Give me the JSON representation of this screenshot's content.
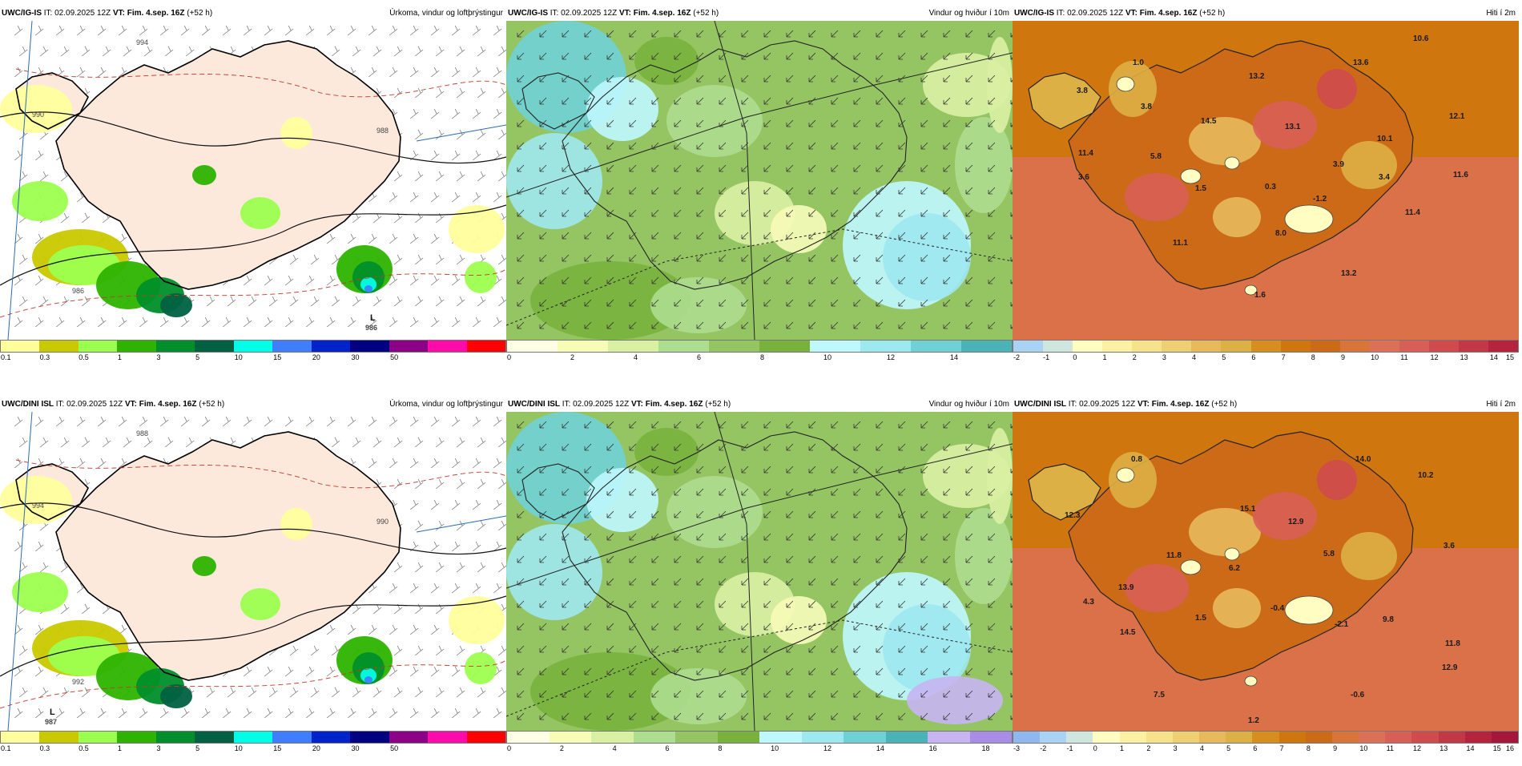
{
  "panels": [
    {
      "row": 0,
      "col": 0,
      "model": "UWC/IG-IS",
      "init": "IT: 02.09.2025 12Z",
      "vt_label": "VT: Fim. 4.sep. 16Z",
      "lead": "(+52 h)",
      "title": "Úrkoma, vindur og loftþrýstingur",
      "kind": "precip",
      "map_labels": [],
      "isobar_labels": [
        "990",
        "986",
        "988",
        "994"
      ],
      "lows": [
        {
          "letter": "L",
          "value": "986"
        }
      ],
      "colorbar": {
        "colors": [
          "#ffff9c",
          "#c9c900",
          "#9cff4f",
          "#2db300",
          "#008f2a",
          "#006142",
          "#00ffe6",
          "#3f7fff",
          "#0023cc",
          "#000080",
          "#8c0088",
          "#ff0bab",
          "#ff0000"
        ],
        "ticks": [
          "0.1",
          "0.3",
          "0.5",
          "1",
          "3",
          "5",
          "10",
          "15",
          "20",
          "30",
          "50"
        ]
      }
    },
    {
      "row": 0,
      "col": 1,
      "model": "UWC/IG-IS",
      "init": "IT: 02.09.2025 12Z",
      "vt_label": "VT: Fim. 4.sep. 16Z",
      "lead": "(+52 h)",
      "title": "Vindur og hviður í 10m",
      "kind": "wind",
      "map_labels": [],
      "colorbar": {
        "colors": [
          "#ffffe5",
          "#f7fcb9",
          "#d9f0a3",
          "#addd8e",
          "#95c563",
          "#78b13c",
          "#bff7ff",
          "#9ee8ef",
          "#6fd0d6",
          "#4bb3b8"
        ],
        "ticks": [
          "0",
          "2",
          "4",
          "6",
          "8",
          "10",
          "12",
          "14"
        ]
      }
    },
    {
      "row": 0,
      "col": 2,
      "model": "UWC/IG-IS",
      "init": "IT: 02.09.2025 12Z",
      "vt_label": "VT: Fim. 4.sep. 16Z",
      "lead": "(+52 h)",
      "title": "Hiti í 2m",
      "kind": "temp",
      "map_labels": [
        "1.0",
        "3.8",
        "3.8",
        "13.2",
        "13.6",
        "10.6",
        "14.5",
        "13.1",
        "12.1",
        "10.1",
        "11.4",
        "5.8",
        "3.6",
        "3.9",
        "3.4",
        "11.6",
        "1.5",
        "0.3",
        "-1.2",
        "11.4",
        "8.0",
        "11.1",
        "13.2",
        "1.6"
      ],
      "colorbar": {
        "colors": [
          "#a9d2f5",
          "#cfe6df",
          "#fffdc2",
          "#fbf0a4",
          "#f6e28a",
          "#efcf73",
          "#e7b95c",
          "#ddb045",
          "#d68e1f",
          "#d0760f",
          "#cc6a18",
          "#d9753a",
          "#dc7157",
          "#d85f55",
          "#cf4b4d",
          "#c33846",
          "#b5233d"
        ],
        "ticks": [
          "-2",
          "-1",
          "0",
          "1",
          "2",
          "3",
          "4",
          "5",
          "6",
          "7",
          "8",
          "9",
          "10",
          "11",
          "12",
          "13",
          "14",
          "15"
        ]
      }
    },
    {
      "row": 1,
      "col": 0,
      "model": "UWC/DINI ISL",
      "init": "IT: 02.09.2025 12Z",
      "vt_label": "VT: Fim. 4.sep. 16Z",
      "lead": "(+52 h)",
      "title": "Úrkoma, vindur og loftþrýstingur",
      "kind": "precip",
      "map_labels": [],
      "isobar_labels": [
        "994",
        "992",
        "990",
        "988"
      ],
      "lows": [
        {
          "letter": "L",
          "value": "987"
        }
      ],
      "colorbar": {
        "colors": [
          "#ffff9c",
          "#c9c900",
          "#9cff4f",
          "#2db300",
          "#008f2a",
          "#006142",
          "#00ffe6",
          "#3f7fff",
          "#0023cc",
          "#000080",
          "#8c0088",
          "#ff0bab",
          "#ff0000"
        ],
        "ticks": [
          "0.1",
          "0.3",
          "0.5",
          "1",
          "3",
          "5",
          "10",
          "15",
          "20",
          "30",
          "50"
        ]
      }
    },
    {
      "row": 1,
      "col": 1,
      "model": "UWC/DINI ISL",
      "init": "IT: 02.09.2025 12Z",
      "vt_label": "VT: Fim. 4.sep. 16Z",
      "lead": "(+52 h)",
      "title": "Vindur og hviður í 10m",
      "kind": "wind",
      "map_labels": [],
      "colorbar": {
        "colors": [
          "#ffffe5",
          "#f7fcb9",
          "#d9f0a3",
          "#addd8e",
          "#95c563",
          "#78b13c",
          "#bff7ff",
          "#9ee8ef",
          "#6fd0d6",
          "#4bb3b8",
          "#c7b5f2",
          "#a98ce6"
        ],
        "ticks": [
          "0",
          "2",
          "4",
          "6",
          "8",
          "10",
          "12",
          "14",
          "16",
          "18"
        ]
      }
    },
    {
      "row": 1,
      "col": 2,
      "model": "UWC/DINI ISL",
      "init": "IT: 02.09.2025 12Z",
      "vt_label": "VT: Fim. 4.sep. 16Z",
      "lead": "(+52 h)",
      "title": "Hiti í 2m",
      "kind": "temp",
      "map_labels": [
        "0.8",
        "14.0",
        "10.2",
        "15.1",
        "12.9",
        "12.3",
        "11.8",
        "6.2",
        "5.8",
        "3.6",
        "13.9",
        "4.3",
        "1.5",
        "-0.4",
        "-2.1",
        "9.8",
        "11.8",
        "14.5",
        "12.9",
        "7.5",
        "-0.6",
        "1.2"
      ],
      "colorbar": {
        "colors": [
          "#8fb8ef",
          "#a9d2f5",
          "#cfe6df",
          "#fffdc2",
          "#fbf0a4",
          "#f6e28a",
          "#efcf73",
          "#e7b95c",
          "#ddb045",
          "#d68e1f",
          "#d0760f",
          "#cc6a18",
          "#d9753a",
          "#dc7157",
          "#d85f55",
          "#cf4b4d",
          "#c33846",
          "#b5233d",
          "#a5163a"
        ],
        "ticks": [
          "-3",
          "-2",
          "-1",
          "0",
          "1",
          "2",
          "3",
          "4",
          "5",
          "6",
          "7",
          "8",
          "9",
          "10",
          "11",
          "12",
          "13",
          "14",
          "15",
          "16"
        ]
      }
    }
  ]
}
